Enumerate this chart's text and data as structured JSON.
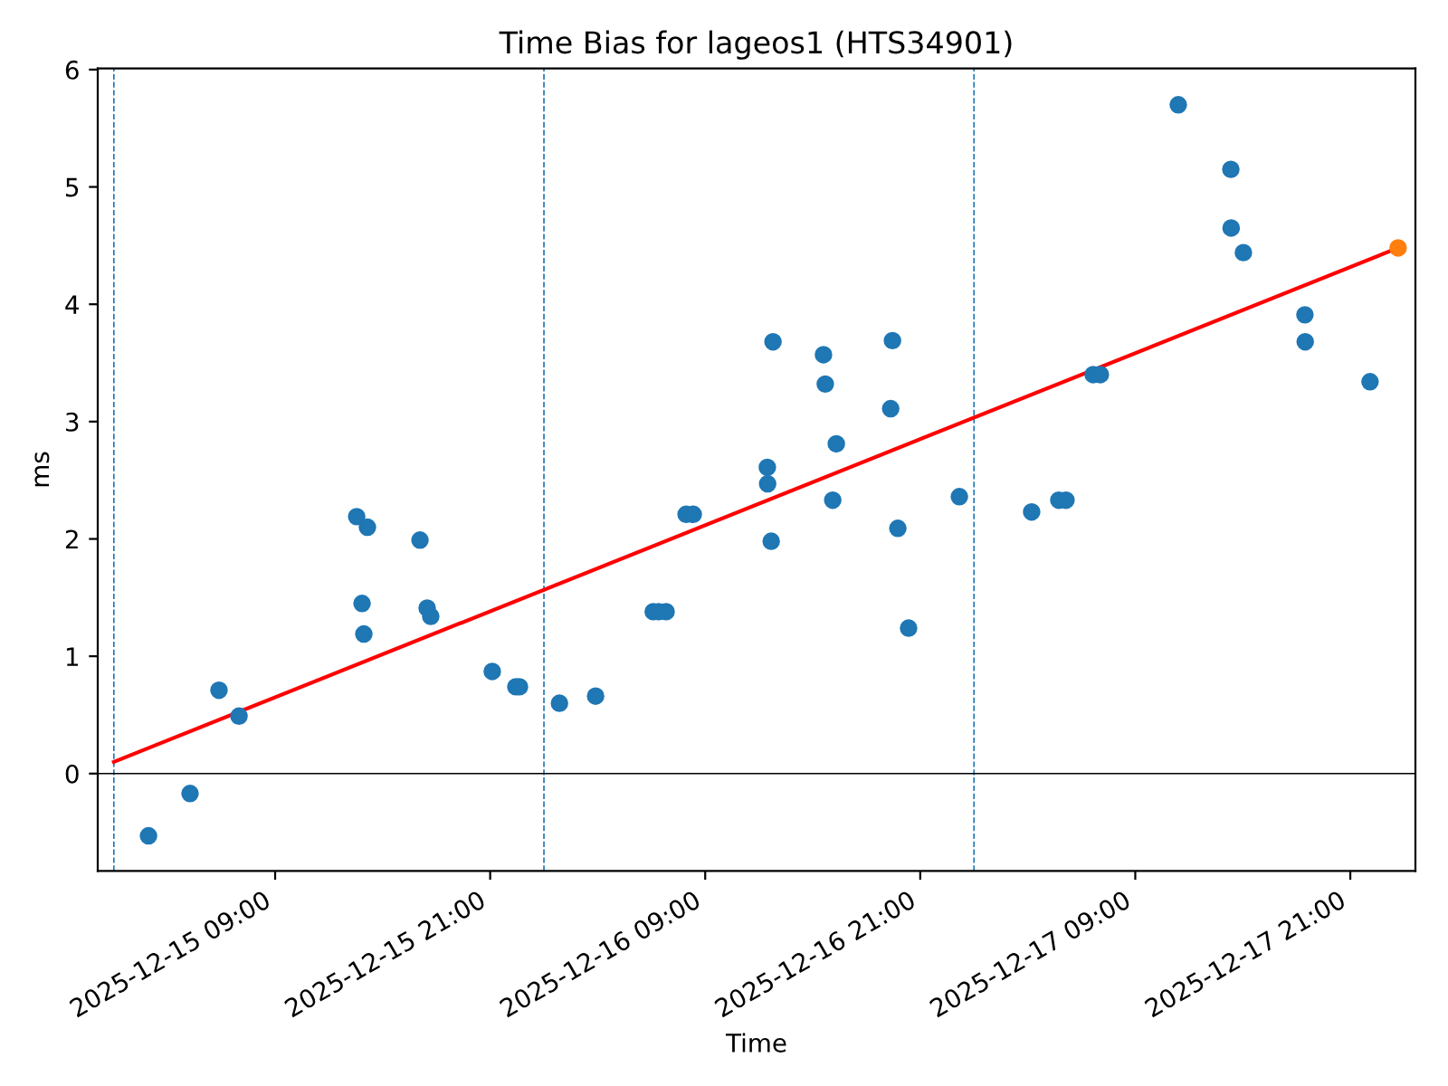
{
  "chart_data": {
    "type": "scatter",
    "title": "Time Bias for lageos1 (HTS34901)",
    "xlabel": "Time",
    "ylabel": "ms",
    "xlim": [
      "2025-12-14T23:06",
      "2025-12-18T00:38"
    ],
    "ylim": [
      -0.83,
      6.01
    ],
    "xticks": [
      {
        "value": "2025-12-15T09:00",
        "label": "2025-12-15 09:00"
      },
      {
        "value": "2025-12-15T21:00",
        "label": "2025-12-15 21:00"
      },
      {
        "value": "2025-12-16T09:00",
        "label": "2025-12-16 09:00"
      },
      {
        "value": "2025-12-16T21:00",
        "label": "2025-12-16 21:00"
      },
      {
        "value": "2025-12-17T09:00",
        "label": "2025-12-17 09:00"
      },
      {
        "value": "2025-12-17T21:00",
        "label": "2025-12-17 21:00"
      }
    ],
    "yticks": [
      0,
      1,
      2,
      3,
      4,
      5,
      6
    ],
    "grid": false,
    "series": [
      {
        "marker": "circle",
        "color": "#1f77b4",
        "x": [
          "2025-12-15T01:56",
          "2025-12-15T04:15",
          "2025-12-15T05:52",
          "2025-12-15T06:59",
          "2025-12-15T13:33",
          "2025-12-15T13:51",
          "2025-12-15T13:57",
          "2025-12-15T14:09",
          "2025-12-15T17:05",
          "2025-12-15T17:29",
          "2025-12-15T17:41",
          "2025-12-15T21:07",
          "2025-12-15T22:26",
          "2025-12-15T22:38",
          "2025-12-16T00:52",
          "2025-12-16T02:53",
          "2025-12-16T06:06",
          "2025-12-16T06:24",
          "2025-12-16T06:49",
          "2025-12-16T07:56",
          "2025-12-16T08:20",
          "2025-12-16T12:28",
          "2025-12-16T12:29",
          "2025-12-16T12:41",
          "2025-12-16T12:47",
          "2025-12-16T15:36",
          "2025-12-16T15:42",
          "2025-12-16T16:07",
          "2025-12-16T16:19",
          "2025-12-16T19:21",
          "2025-12-16T19:27",
          "2025-12-16T19:45",
          "2025-12-16T20:21",
          "2025-12-16T23:11",
          "2025-12-17T03:13",
          "2025-12-17T04:44",
          "2025-12-17T05:08",
          "2025-12-17T06:39",
          "2025-12-17T07:03",
          "2025-12-17T11:24",
          "2025-12-17T14:20",
          "2025-12-17T14:21",
          "2025-12-17T15:02",
          "2025-12-17T18:28",
          "2025-12-17T18:29",
          "2025-12-17T22:06"
        ],
        "values": [
          -0.53,
          -0.17,
          0.71,
          0.49,
          2.19,
          1.45,
          1.19,
          2.1,
          1.99,
          1.41,
          1.34,
          0.87,
          0.74,
          0.74,
          0.6,
          0.66,
          1.38,
          1.38,
          1.38,
          2.21,
          2.21,
          2.61,
          2.47,
          1.98,
          3.68,
          3.57,
          3.32,
          2.33,
          2.81,
          3.11,
          3.69,
          2.09,
          1.24,
          2.36,
          2.23,
          2.33,
          2.33,
          3.4,
          3.4,
          5.7,
          5.15,
          4.65,
          4.44,
          3.91,
          3.68,
          3.34
        ]
      },
      {
        "type": "line",
        "color": "#ff0000",
        "marker": "none",
        "line_style": "solid",
        "x": [
          "2025-12-15T00:00",
          "2025-12-17T23:40"
        ],
        "values": [
          0.1,
          4.48
        ]
      },
      {
        "type": "scatter",
        "marker": "circle",
        "color": "#ff7f0e",
        "x": [
          "2025-12-17T23:40"
        ],
        "values": [
          4.48
        ]
      }
    ],
    "ref_lines": [
      {
        "axis": "x",
        "value": "2025-12-15T00:00",
        "color": "#1f77b4",
        "line_style": "dashed"
      },
      {
        "axis": "x",
        "value": "2025-12-16T00:00",
        "color": "#1f77b4",
        "line_style": "dashed"
      },
      {
        "axis": "x",
        "value": "2025-12-17T00:00",
        "color": "#1f77b4",
        "line_style": "dashed"
      },
      {
        "axis": "y",
        "value": 0,
        "color": "#000000",
        "line_style": "solid"
      }
    ]
  }
}
